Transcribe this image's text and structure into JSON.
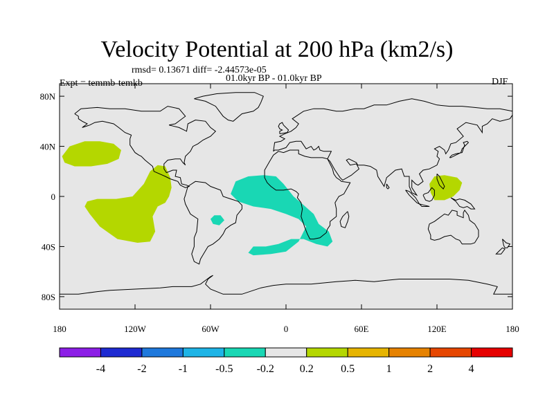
{
  "title": "Velocity Potential at 200 hPa (km2/s)",
  "stats": "rmsd= 0.13671  diff= -2.44573e-05",
  "period": "01.0kyr BP - 01.0kyr BP",
  "experiment": "Expt = temmb-temkb",
  "season": "DJF",
  "map": {
    "lon_range": [
      -180,
      180
    ],
    "lat_range": [
      -90,
      90
    ],
    "background_color": "#e6e6e6",
    "y_ticks": [
      {
        "lat": 80,
        "label": "80N"
      },
      {
        "lat": 40,
        "label": "40N"
      },
      {
        "lat": 0,
        "label": "0"
      },
      {
        "lat": -40,
        "label": "40S"
      },
      {
        "lat": -80,
        "label": "80S"
      }
    ],
    "x_ticks": [
      {
        "lon": -180,
        "label": "180"
      },
      {
        "lon": -120,
        "label": "120W"
      },
      {
        "lon": -60,
        "label": "60W"
      },
      {
        "lon": 0,
        "label": "0"
      },
      {
        "lon": 60,
        "label": "60E"
      },
      {
        "lon": 120,
        "label": "120E"
      },
      {
        "lon": 180,
        "label": "180"
      }
    ],
    "anomaly_regions": [
      {
        "name": "north-pacific-positive",
        "level": "0.2 to 0.5",
        "color": "#b4d700",
        "lonlat": [
          [
            -178,
            32
          ],
          [
            -172,
            40
          ],
          [
            -160,
            44
          ],
          [
            -148,
            44
          ],
          [
            -137,
            42
          ],
          [
            -131,
            37
          ],
          [
            -133,
            30
          ],
          [
            -142,
            26
          ],
          [
            -155,
            24
          ],
          [
            -168,
            24
          ],
          [
            -176,
            27
          ]
        ]
      },
      {
        "name": "east-pacific-positive",
        "level": "0.2 to 0.5",
        "color": "#b4d700",
        "lonlat": [
          [
            -158,
            -4
          ],
          [
            -150,
            -2
          ],
          [
            -135,
            -2
          ],
          [
            -122,
            0
          ],
          [
            -113,
            10
          ],
          [
            -108,
            20
          ],
          [
            -102,
            25
          ],
          [
            -96,
            24
          ],
          [
            -92,
            15
          ],
          [
            -91,
            7
          ],
          [
            -93,
            0
          ],
          [
            -96,
            -5
          ],
          [
            -102,
            -8
          ],
          [
            -106,
            -16
          ],
          [
            -104,
            -28
          ],
          [
            -108,
            -36
          ],
          [
            -118,
            -37
          ],
          [
            -134,
            -34
          ],
          [
            -148,
            -24
          ],
          [
            -156,
            -14
          ],
          [
            -160,
            -8
          ]
        ]
      },
      {
        "name": "atlantic-africa-negative",
        "level": "-0.5 to -0.2",
        "color": "#19d7b4",
        "lonlat": [
          [
            -44,
            2
          ],
          [
            -40,
            12
          ],
          [
            -30,
            16
          ],
          [
            -18,
            17
          ],
          [
            -8,
            16
          ],
          [
            -2,
            10
          ],
          [
            6,
            0
          ],
          [
            13,
            -6
          ],
          [
            22,
            -14
          ],
          [
            26,
            -22
          ],
          [
            34,
            -28
          ],
          [
            37,
            -36
          ],
          [
            33,
            -40
          ],
          [
            24,
            -38
          ],
          [
            14,
            -34
          ],
          [
            4,
            -34
          ],
          [
            -6,
            -38
          ],
          [
            -16,
            -40
          ],
          [
            -26,
            -40
          ],
          [
            -30,
            -45
          ],
          [
            -26,
            -47
          ],
          [
            -12,
            -46
          ],
          [
            0,
            -44
          ],
          [
            10,
            -36
          ],
          [
            16,
            -24
          ],
          [
            10,
            -18
          ],
          [
            0,
            -14
          ],
          [
            -12,
            -10
          ],
          [
            -26,
            -8
          ],
          [
            -38,
            -4
          ]
        ]
      },
      {
        "name": "south-america-negative",
        "level": "-0.5 to -0.2",
        "color": "#19d7b4",
        "lonlat": [
          [
            -57,
            -15
          ],
          [
            -52,
            -15
          ],
          [
            -49,
            -19
          ],
          [
            -53,
            -23
          ],
          [
            -58,
            -22
          ],
          [
            -60,
            -18
          ]
        ]
      },
      {
        "name": "maritime-continent-positive",
        "level": "0.2 to 0.5",
        "color": "#b4d700",
        "lonlat": [
          [
            114,
            10
          ],
          [
            118,
            16
          ],
          [
            126,
            17
          ],
          [
            136,
            15
          ],
          [
            140,
            11
          ],
          [
            138,
            5
          ],
          [
            133,
            0
          ],
          [
            126,
            -3
          ],
          [
            118,
            -3
          ],
          [
            115,
            3
          ]
        ]
      }
    ]
  },
  "colorbar": {
    "colors": [
      "#8c1ee6",
      "#1e2ad2",
      "#1e78dc",
      "#1eb4e6",
      "#19d7b4",
      "#e6e6e6",
      "#b4d700",
      "#e6b400",
      "#e68200",
      "#e64600",
      "#e60000"
    ],
    "labels": [
      "-4",
      "-2",
      "-1",
      "-0.5",
      "-0.2",
      "0.2",
      "0.5",
      "1",
      "2",
      "4"
    ]
  }
}
